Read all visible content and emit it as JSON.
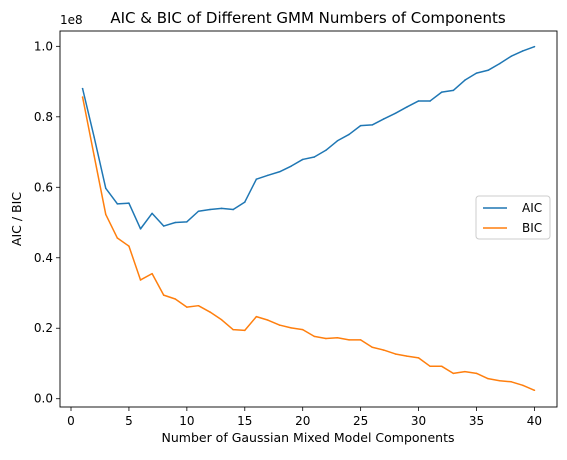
{
  "chart_data": {
    "type": "line",
    "title": "AIC & BIC of Different GMM Numbers of Components",
    "xlabel": "Number of Gaussian Mixed Model Components",
    "ylabel": "AIC / BIC",
    "y_offset_label": "1e8",
    "xlim": [
      -0.95,
      41.95
    ],
    "ylim": [
      -0.0235,
      1.0435
    ],
    "x_ticks": [
      0,
      5,
      10,
      15,
      20,
      25,
      30,
      35,
      40
    ],
    "y_ticks": [
      0.0,
      0.2,
      0.4,
      0.6,
      0.8,
      1.0
    ],
    "y_tick_labels": [
      "0.0",
      "0.2",
      "0.4",
      "0.6",
      "0.8",
      "1.0"
    ],
    "x": [
      1,
      2,
      3,
      4,
      5,
      6,
      7,
      8,
      9,
      10,
      11,
      12,
      13,
      14,
      15,
      16,
      17,
      18,
      19,
      20,
      21,
      22,
      23,
      24,
      25,
      26,
      27,
      28,
      29,
      30,
      31,
      32,
      33,
      34,
      35,
      36,
      37,
      38,
      39,
      40
    ],
    "series": [
      {
        "name": "AIC",
        "color": "#1f77b4",
        "values": [
          0.88,
          0.742,
          0.597,
          0.553,
          0.555,
          0.482,
          0.526,
          0.49,
          0.5,
          0.502,
          0.532,
          0.537,
          0.54,
          0.537,
          0.558,
          0.623,
          0.634,
          0.644,
          0.66,
          0.679,
          0.686,
          0.705,
          0.732,
          0.75,
          0.775,
          0.777,
          0.794,
          0.81,
          0.828,
          0.845,
          0.845,
          0.87,
          0.875,
          0.904,
          0.924,
          0.932,
          0.951,
          0.972,
          0.987,
          0.999
        ]
      },
      {
        "name": "BIC",
        "color": "#ff7f0e",
        "values": [
          0.856,
          0.689,
          0.523,
          0.456,
          0.433,
          0.337,
          0.355,
          0.294,
          0.283,
          0.26,
          0.264,
          0.246,
          0.224,
          0.196,
          0.194,
          0.233,
          0.223,
          0.209,
          0.201,
          0.196,
          0.177,
          0.171,
          0.173,
          0.167,
          0.167,
          0.146,
          0.138,
          0.127,
          0.121,
          0.116,
          0.092,
          0.092,
          0.072,
          0.077,
          0.072,
          0.057,
          0.051,
          0.048,
          0.038,
          0.024
        ]
      }
    ],
    "legend": {
      "position": "center-right",
      "entries": [
        "AIC",
        "BIC"
      ]
    },
    "grid": false
  }
}
